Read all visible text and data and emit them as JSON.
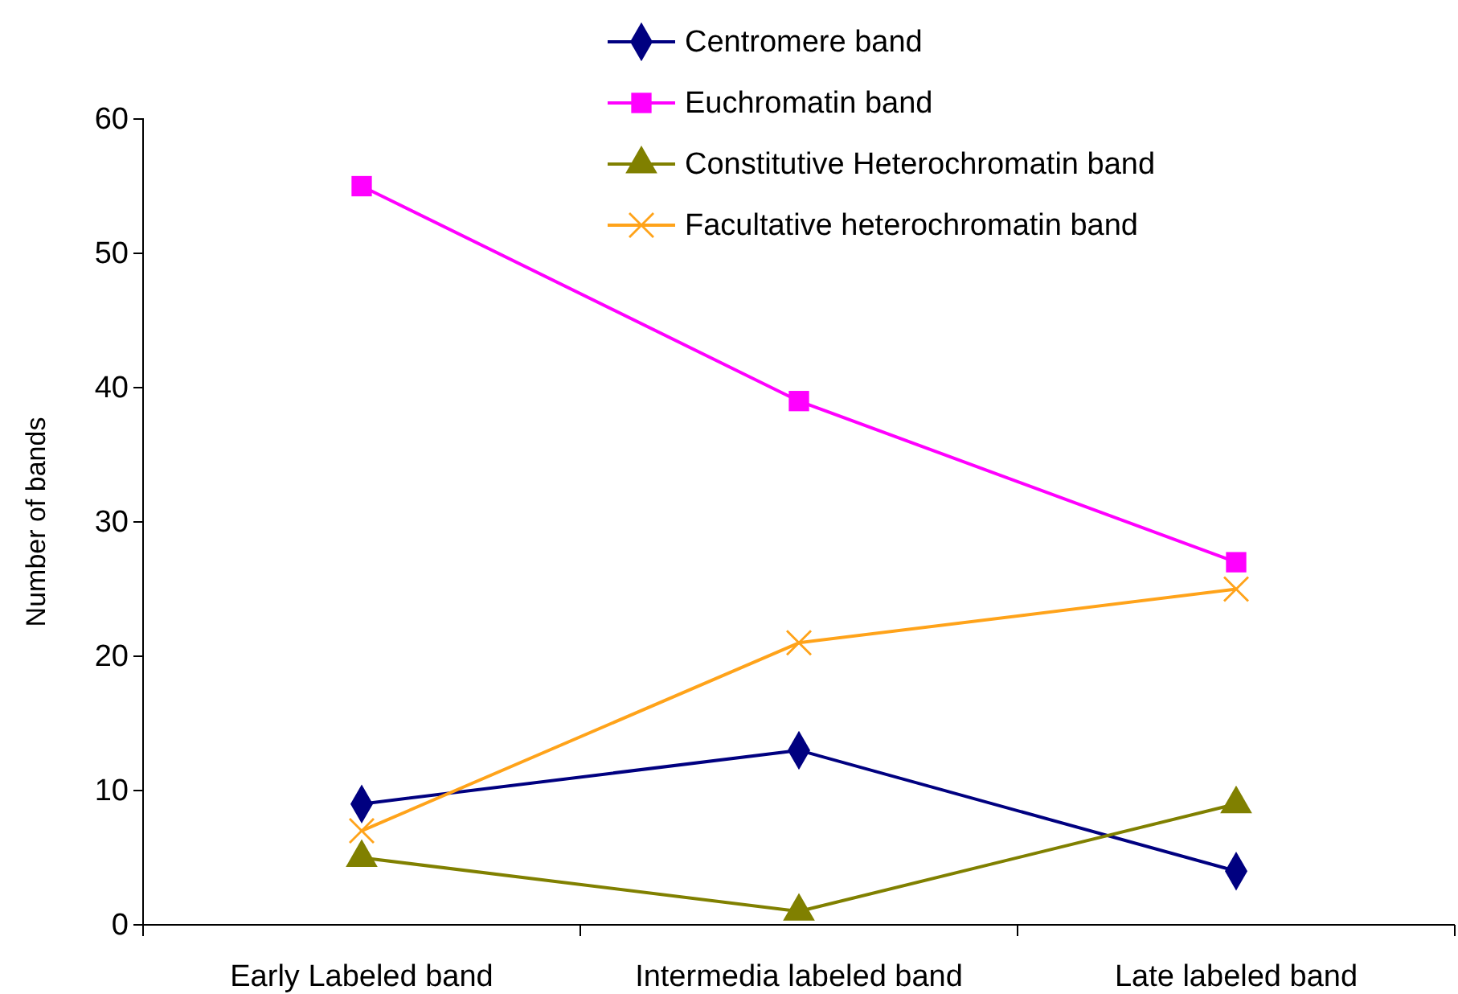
{
  "chart_data": {
    "type": "line",
    "ylabel": "Number of  bands",
    "categories": [
      "Early Labeled band",
      "Intermedia labeled band",
      "Late labeled band"
    ],
    "series": [
      {
        "name": "Centromere band",
        "color": "#000080",
        "values": [
          9,
          13,
          4
        ],
        "marker": "diamond"
      },
      {
        "name": "Euchromatin band",
        "color": "#ff00ff",
        "values": [
          55,
          39,
          27
        ],
        "marker": "square"
      },
      {
        "name": "Constitutive Heterochromatin band",
        "color": "#808000",
        "values": [
          5,
          1,
          9
        ],
        "marker": "triangle"
      },
      {
        "name": "Facultative heterochromatin band",
        "color": "#ffa31a",
        "values": [
          7,
          21,
          25
        ],
        "marker": "cross"
      }
    ],
    "ylim": [
      0,
      60
    ],
    "yticks": [
      0,
      10,
      20,
      30,
      40,
      50,
      60
    ],
    "grid": false,
    "legend": "top"
  }
}
